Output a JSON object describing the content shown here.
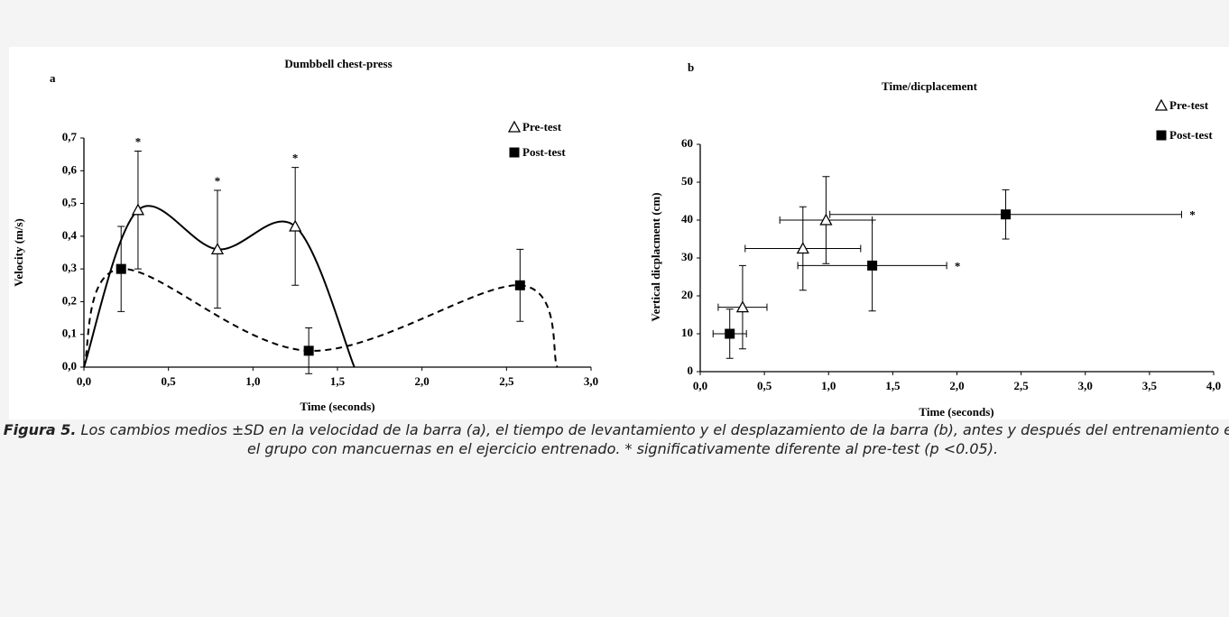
{
  "chart_data": [
    {
      "type": "scatter",
      "panel": "a",
      "title": "Dumbbell chest-press",
      "x_label": "Time (seconds)",
      "y_label": "Velocity (m/s)",
      "xlim": [
        0,
        3
      ],
      "ylim": [
        0,
        0.7
      ],
      "xticks": [
        {
          "value": 0,
          "label": "0,0"
        },
        {
          "value": 0.5,
          "label": "0,5"
        },
        {
          "value": 1,
          "label": "1,0"
        },
        {
          "value": 1.5,
          "label": "1,5"
        },
        {
          "value": 2,
          "label": "2,0"
        },
        {
          "value": 2.5,
          "label": "2,5"
        },
        {
          "value": 3,
          "label": "3,0"
        }
      ],
      "yticks": [
        {
          "value": 0,
          "label": "0,0"
        },
        {
          "value": 0.1,
          "label": "0,1"
        },
        {
          "value": 0.2,
          "label": "0,2"
        },
        {
          "value": 0.3,
          "label": "0,3"
        },
        {
          "value": 0.4,
          "label": "0,4"
        },
        {
          "value": 0.5,
          "label": "0,5"
        },
        {
          "value": 0.6,
          "label": "0,6"
        },
        {
          "value": 0.7,
          "label": "0,7"
        }
      ],
      "sig_label": "*",
      "smooth_line": true,
      "series": [
        {
          "name": "Pre-test",
          "marker": "triangle",
          "color": "#000000",
          "dashed": false,
          "x": [
            0,
            0.32,
            0.79,
            1.25,
            1.6
          ],
          "values": [
            0,
            0.48,
            0.36,
            0.43,
            0
          ],
          "yerr": [
            null,
            0.18,
            0.18,
            0.18,
            null
          ],
          "markers": [
            false,
            true,
            true,
            true,
            false
          ],
          "significant": [
            false,
            true,
            true,
            true,
            false
          ]
        },
        {
          "name": "Post-test",
          "marker": "square",
          "color": "#000000",
          "dashed": true,
          "x": [
            0,
            0.22,
            1.33,
            2.58,
            2.8
          ],
          "values": [
            0,
            0.3,
            0.05,
            0.25,
            0
          ],
          "yerr": [
            null,
            0.13,
            0.07,
            0.11,
            null
          ],
          "markers": [
            false,
            true,
            true,
            true,
            false
          ],
          "significant": [
            false,
            false,
            false,
            false,
            false
          ]
        }
      ]
    },
    {
      "type": "scatter",
      "panel": "b",
      "title": "Time/dicplacement",
      "x_label": "Time (seconds)",
      "y_label": "Vertical dicplacment (cm)",
      "xlim": [
        0,
        4
      ],
      "ylim": [
        0,
        60
      ],
      "xticks": [
        {
          "value": 0,
          "label": "0,0"
        },
        {
          "value": 0.5,
          "label": "0,5"
        },
        {
          "value": 1,
          "label": "1,0"
        },
        {
          "value": 1.5,
          "label": "1,5"
        },
        {
          "value": 2,
          "label": "2,0"
        },
        {
          "value": 2.5,
          "label": "2,5"
        },
        {
          "value": 3,
          "label": "3,0"
        },
        {
          "value": 3.5,
          "label": "3,5"
        },
        {
          "value": 4,
          "label": "4,0"
        }
      ],
      "yticks": [
        0,
        10,
        20,
        30,
        40,
        50,
        60
      ],
      "sig_label": "*",
      "smooth_line": false,
      "series": [
        {
          "name": "Pre-test",
          "marker": "triangle",
          "color": "#000000",
          "x": [
            0.33,
            0.8,
            0.98
          ],
          "values": [
            17,
            32.5,
            40
          ],
          "xerr": [
            0.19,
            0.45,
            0.36
          ],
          "yerr": [
            11,
            11,
            11.5
          ],
          "markers": [
            true,
            true,
            true
          ],
          "significant": [
            false,
            false,
            false
          ]
        },
        {
          "name": "Post-test",
          "marker": "square",
          "color": "#000000",
          "x": [
            0.23,
            1.34,
            2.38
          ],
          "values": [
            10,
            28,
            41.5
          ],
          "xerr": [
            0.13,
            0.58,
            1.37
          ],
          "yerr": [
            6.5,
            12,
            6.5
          ],
          "markers": [
            true,
            true,
            true
          ],
          "significant": [
            false,
            true,
            true
          ]
        }
      ]
    }
  ],
  "caption": {
    "label": "Figura 5.",
    "text": "Los cambios medios ±SD en la velocidad de la barra (a), el tiempo de levantamiento y el desplazamiento de la barra (b), antes y después del entrenamiento en el grupo con mancuernas en el ejercicio entrenado. * significativamente diferente al pre-test (p <0.05)."
  }
}
